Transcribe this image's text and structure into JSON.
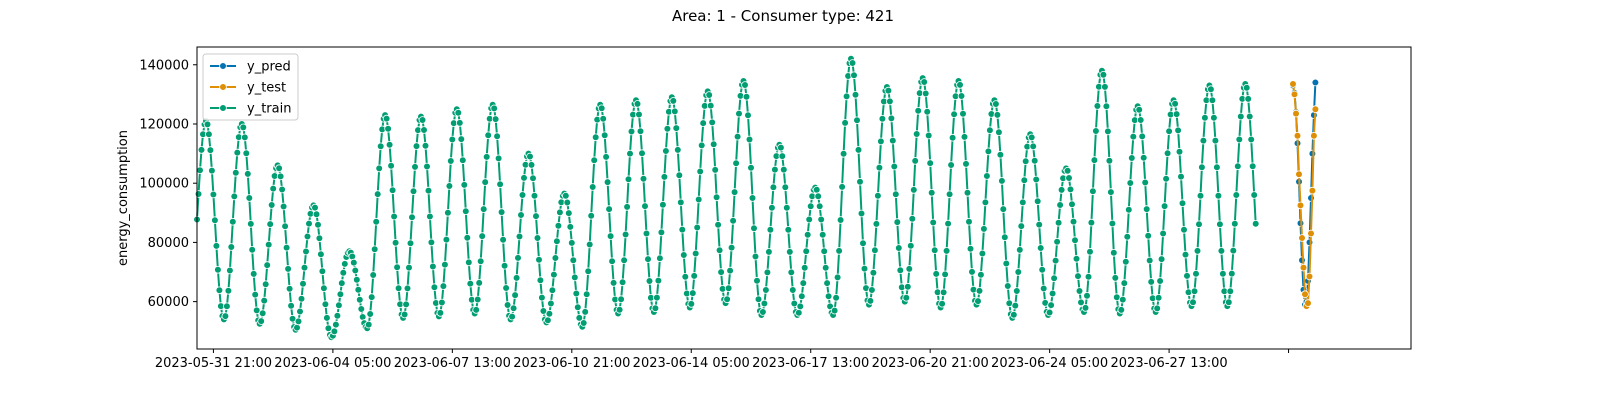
{
  "chart_data": {
    "type": "line",
    "title": "Area: 1 - Consumer type: 421",
    "xlabel": "",
    "ylabel": "energy_consumption",
    "ylim": [
      44000,
      146000
    ],
    "yticks": [
      60000,
      80000,
      100000,
      120000,
      140000
    ],
    "xlim": [
      "2023-05-31 10:00",
      "2023-07-04 07:00"
    ],
    "xticks": [
      "2023-05-31 21:00",
      "2023-06-04 05:00",
      "2023-06-07 13:00",
      "2023-06-10 21:00",
      "2023-06-14 05:00",
      "2023-06-17 13:00",
      "2023-06-20 21:00",
      "2023-06-24 05:00",
      "2023-06-27 13:00",
      "2023-06-30 21:00"
    ],
    "xtick_labels": [
      "2023-05-31 21:00",
      "2023-06-04 05:00",
      "2023-06-07 13:00",
      "2023-06-10 21:00",
      "2023-06-14 05:00",
      "2023-06-17 13:00",
      "2023-06-20 21:00",
      "2023-06-24 05:00",
      "2023-06-27 13:00",
      ""
    ],
    "legend": {
      "position": "top-left"
    },
    "grid": false,
    "colors": {
      "y_pred": "#0173b2",
      "y_test": "#de8f05",
      "y_train": "#029e73"
    },
    "series": [
      {
        "name": "y_pred",
        "sampling": "hourly",
        "start": "2023-07-01 00:00",
        "values": [
          133000,
          130500,
          124000,
          113500,
          100500,
          86500,
          74000,
          64000,
          59000,
          60000,
          67000,
          80000,
          95000,
          110000,
          123000,
          134000
        ]
      },
      {
        "name": "y_test",
        "sampling": "hourly",
        "start": "2023-07-01 00:00",
        "values": [
          133500,
          130000,
          123500,
          116000,
          103000,
          92500,
          81500,
          71500,
          62500,
          58500,
          59500,
          68500,
          83000,
          97500,
          116000,
          125000
        ]
      },
      {
        "name": "y_train",
        "sampling": "daily-cycle",
        "start": "2023-05-31 10:00",
        "daily": [
          {
            "date": "2023-05-31",
            "min": 54500,
            "max": 121000
          },
          {
            "date": "2023-06-01",
            "min": 54000,
            "max": 120000
          },
          {
            "date": "2023-06-02",
            "min": 52500,
            "max": 106000
          },
          {
            "date": "2023-06-03",
            "min": 50500,
            "max": 92500
          },
          {
            "date": "2023-06-04",
            "min": 48000,
            "max": 77000
          },
          {
            "date": "2023-06-05",
            "min": 51000,
            "max": 123000
          },
          {
            "date": "2023-06-06",
            "min": 54500,
            "max": 122500
          },
          {
            "date": "2023-06-07",
            "min": 55000,
            "max": 125000
          },
          {
            "date": "2023-06-08",
            "min": 56000,
            "max": 126500
          },
          {
            "date": "2023-06-09",
            "min": 54000,
            "max": 110000
          },
          {
            "date": "2023-06-10",
            "min": 53000,
            "max": 96500
          },
          {
            "date": "2023-06-11",
            "min": 51500,
            "max": 126500
          },
          {
            "date": "2023-06-12",
            "min": 56000,
            "max": 128000
          },
          {
            "date": "2023-06-13",
            "min": 56500,
            "max": 129000
          },
          {
            "date": "2023-06-14",
            "min": 58000,
            "max": 131000
          },
          {
            "date": "2023-06-15",
            "min": 59500,
            "max": 134500
          },
          {
            "date": "2023-06-16",
            "min": 55500,
            "max": 113000
          },
          {
            "date": "2023-06-17",
            "min": 55500,
            "max": 98500
          },
          {
            "date": "2023-06-18",
            "min": 55500,
            "max": 142000
          },
          {
            "date": "2023-06-19",
            "min": 59000,
            "max": 132500
          },
          {
            "date": "2023-06-20",
            "min": 60000,
            "max": 135500
          },
          {
            "date": "2023-06-21",
            "min": 58000,
            "max": 134500
          },
          {
            "date": "2023-06-22",
            "min": 59000,
            "max": 128000
          },
          {
            "date": "2023-06-23",
            "min": 54500,
            "max": 116500
          },
          {
            "date": "2023-06-24",
            "min": 55500,
            "max": 105000
          },
          {
            "date": "2023-06-25",
            "min": 56500,
            "max": 138000
          },
          {
            "date": "2023-06-26",
            "min": 56000,
            "max": 126000
          },
          {
            "date": "2023-06-27",
            "min": 56500,
            "max": 128000
          },
          {
            "date": "2023-06-28",
            "min": 58500,
            "max": 133000
          },
          {
            "date": "2023-06-29",
            "min": 58500,
            "max": 133500
          }
        ]
      }
    ]
  }
}
